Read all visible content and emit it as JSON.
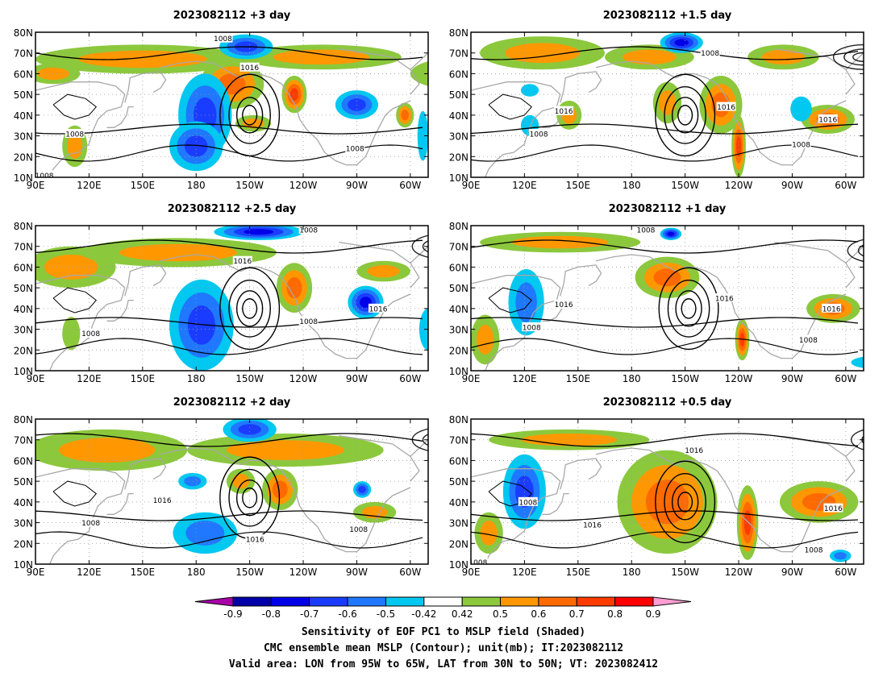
{
  "chart_data": [
    {
      "type": "heatmap",
      "title": "2023082112 +3 day",
      "xlim": [
        "90E",
        "50W"
      ],
      "ylim": [
        "10N",
        "80N"
      ],
      "x_ticks": [
        "90E",
        "120E",
        "150E",
        "180",
        "150W",
        "120W",
        "90W",
        "60W"
      ],
      "y_ticks": [
        "10N",
        "20N",
        "30N",
        "40N",
        "50N",
        "60N",
        "70N",
        "80N"
      ],
      "contour_labels": [
        {
          "value": "1008",
          "lon": 195,
          "lat": 77
        },
        {
          "value": "1016",
          "lon": 210,
          "lat": 63
        },
        {
          "value": "1008",
          "lon": 112,
          "lat": 31
        },
        {
          "value": "1008",
          "lon": 269,
          "lat": 24
        },
        {
          "value": "1008",
          "lon": 95,
          "lat": 11
        }
      ],
      "lows": [
        {
          "lon": 210,
          "lat": 40
        },
        {
          "lon": 330,
          "lat": 72
        }
      ],
      "positive_regions": [
        {
          "lon": 100,
          "lat": 60,
          "rx": 15,
          "ry": 5,
          "v": 0.58
        },
        {
          "lon": 150,
          "lat": 67,
          "rx": 60,
          "ry": 7,
          "v": 0.62
        },
        {
          "lon": 250,
          "lat": 68,
          "rx": 45,
          "ry": 6,
          "v": 0.6
        },
        {
          "lon": 330,
          "lat": 60,
          "rx": 30,
          "ry": 8,
          "v": 0.55
        },
        {
          "lon": 200,
          "lat": 55,
          "rx": 18,
          "ry": 12,
          "v": 0.66
        },
        {
          "lon": 235,
          "lat": 50,
          "rx": 7,
          "ry": 9,
          "v": 0.75
        },
        {
          "lon": 297,
          "lat": 40,
          "rx": 5,
          "ry": 6,
          "v": 0.72
        },
        {
          "lon": 112,
          "lat": 25,
          "rx": 7,
          "ry": 10,
          "v": 0.58
        },
        {
          "lon": 212,
          "lat": 36,
          "rx": 10,
          "ry": 4,
          "v": 0.55
        }
      ],
      "negative_regions": [
        {
          "lon": 185,
          "lat": 40,
          "rx": 15,
          "ry": 20,
          "v": -0.72
        },
        {
          "lon": 180,
          "lat": 25,
          "rx": 15,
          "ry": 12,
          "v": -0.72
        },
        {
          "lon": 208,
          "lat": 73,
          "rx": 15,
          "ry": 6,
          "v": -0.68
        },
        {
          "lon": 270,
          "lat": 45,
          "rx": 12,
          "ry": 7,
          "v": -0.68
        },
        {
          "lon": 307,
          "lat": 30,
          "rx": 3,
          "ry": 12,
          "v": -0.5
        }
      ]
    },
    {
      "type": "heatmap",
      "title": "2023082112 +1.5 day",
      "xlim": [
        "90E",
        "50W"
      ],
      "ylim": [
        "10N",
        "80N"
      ],
      "x_ticks": [
        "90E",
        "120E",
        "150E",
        "180",
        "150W",
        "120W",
        "90W",
        "60W"
      ],
      "y_ticks": [
        "10N",
        "20N",
        "30N",
        "40N",
        "50N",
        "60N",
        "70N",
        "80N"
      ],
      "contour_labels": [
        {
          "value": "1008",
          "lon": 224,
          "lat": 70
        },
        {
          "value": "1016",
          "lon": 142,
          "lat": 42
        },
        {
          "value": "1016",
          "lon": 233,
          "lat": 44
        },
        {
          "value": "1016",
          "lon": 290,
          "lat": 38
        },
        {
          "value": "1008",
          "lon": 128,
          "lat": 31
        },
        {
          "value": "1008",
          "lon": 275,
          "lat": 26
        }
      ],
      "lows": [
        {
          "lon": 210,
          "lat": 40
        },
        {
          "lon": 310,
          "lat": 68
        }
      ],
      "positive_regions": [
        {
          "lon": 130,
          "lat": 70,
          "rx": 35,
          "ry": 8,
          "v": 0.6
        },
        {
          "lon": 190,
          "lat": 68,
          "rx": 25,
          "ry": 6,
          "v": 0.55
        },
        {
          "lon": 265,
          "lat": 68,
          "rx": 20,
          "ry": 6,
          "v": 0.55
        },
        {
          "lon": 230,
          "lat": 45,
          "rx": 12,
          "ry": 14,
          "v": 0.68
        },
        {
          "lon": 240,
          "lat": 25,
          "rx": 4,
          "ry": 15,
          "v": 0.78
        },
        {
          "lon": 200,
          "lat": 46,
          "rx": 8,
          "ry": 10,
          "v": 0.62
        },
        {
          "lon": 290,
          "lat": 38,
          "rx": 15,
          "ry": 7,
          "v": 0.7
        },
        {
          "lon": 145,
          "lat": 40,
          "rx": 7,
          "ry": 7,
          "v": 0.58
        }
      ],
      "negative_regions": [
        {
          "lon": 208,
          "lat": 75,
          "rx": 12,
          "ry": 5,
          "v": -0.8
        },
        {
          "lon": 123,
          "lat": 35,
          "rx": 5,
          "ry": 5,
          "v": -0.5
        },
        {
          "lon": 275,
          "lat": 43,
          "rx": 6,
          "ry": 6,
          "v": -0.5
        },
        {
          "lon": 333,
          "lat": 23,
          "rx": 6,
          "ry": 7,
          "v": -0.55
        },
        {
          "lon": 123,
          "lat": 52,
          "rx": 5,
          "ry": 3,
          "v": -0.5
        }
      ]
    },
    {
      "type": "heatmap",
      "title": "2023082112 +2.5 day",
      "xlim": [
        "90E",
        "50W"
      ],
      "ylim": [
        "10N",
        "80N"
      ],
      "x_ticks": [
        "90E",
        "120E",
        "150E",
        "180",
        "150W",
        "120W",
        "90W",
        "60W"
      ],
      "y_ticks": [
        "10N",
        "20N",
        "30N",
        "40N",
        "50N",
        "60N",
        "70N",
        "80N"
      ],
      "contour_labels": [
        {
          "value": "1008",
          "lon": 243,
          "lat": 78
        },
        {
          "value": "1016",
          "lon": 206,
          "lat": 63
        },
        {
          "value": "1016",
          "lon": 282,
          "lat": 40
        },
        {
          "value": "1008",
          "lon": 243,
          "lat": 34
        },
        {
          "value": "1008",
          "lon": 121,
          "lat": 28
        }
      ],
      "lows": [
        {
          "lon": 210,
          "lat": 40
        },
        {
          "lon": 318,
          "lat": 70
        }
      ],
      "positive_regions": [
        {
          "lon": 110,
          "lat": 60,
          "rx": 25,
          "ry": 10,
          "v": 0.58
        },
        {
          "lon": 170,
          "lat": 67,
          "rx": 55,
          "ry": 7,
          "v": 0.6
        },
        {
          "lon": 235,
          "lat": 50,
          "rx": 10,
          "ry": 12,
          "v": 0.72
        },
        {
          "lon": 110,
          "lat": 28,
          "rx": 5,
          "ry": 8,
          "v": 0.5
        },
        {
          "lon": 285,
          "lat": 58,
          "rx": 15,
          "ry": 5,
          "v": 0.55
        }
      ],
      "negative_regions": [
        {
          "lon": 183,
          "lat": 32,
          "rx": 18,
          "ry": 22,
          "v": -0.72
        },
        {
          "lon": 215,
          "lat": 77,
          "rx": 25,
          "ry": 4,
          "v": -0.75
        },
        {
          "lon": 275,
          "lat": 43,
          "rx": 10,
          "ry": 8,
          "v": -0.75
        },
        {
          "lon": 310,
          "lat": 30,
          "rx": 5,
          "ry": 10,
          "v": -0.5
        },
        {
          "lon": 330,
          "lat": 42,
          "rx": 4,
          "ry": 8,
          "v": -0.5
        }
      ]
    },
    {
      "type": "heatmap",
      "title": "2023082112 +1 day",
      "xlim": [
        "90E",
        "50W"
      ],
      "ylim": [
        "10N",
        "80N"
      ],
      "x_ticks": [
        "90E",
        "120E",
        "150E",
        "180",
        "150W",
        "120W",
        "90W",
        "60W"
      ],
      "y_ticks": [
        "10N",
        "20N",
        "30N",
        "40N",
        "50N",
        "60N",
        "70N",
        "80N"
      ],
      "contour_labels": [
        {
          "value": "1008",
          "lon": 188,
          "lat": 78
        },
        {
          "value": "1016",
          "lon": 142,
          "lat": 42
        },
        {
          "value": "1016",
          "lon": 232,
          "lat": 45
        },
        {
          "value": "1016",
          "lon": 292,
          "lat": 40
        },
        {
          "value": "1008",
          "lon": 124,
          "lat": 31
        },
        {
          "value": "1008",
          "lon": 279,
          "lat": 25
        }
      ],
      "lows": [
        {
          "lon": 212,
          "lat": 40
        },
        {
          "lon": 318,
          "lat": 68
        }
      ],
      "positive_regions": [
        {
          "lon": 140,
          "lat": 72,
          "rx": 45,
          "ry": 5,
          "v": 0.58
        },
        {
          "lon": 200,
          "lat": 55,
          "rx": 18,
          "ry": 10,
          "v": 0.65
        },
        {
          "lon": 242,
          "lat": 25,
          "rx": 4,
          "ry": 10,
          "v": 0.75
        },
        {
          "lon": 293,
          "lat": 40,
          "rx": 15,
          "ry": 7,
          "v": 0.68
        },
        {
          "lon": 98,
          "lat": 25,
          "rx": 8,
          "ry": 12,
          "v": 0.55
        },
        {
          "lon": 343,
          "lat": 40,
          "rx": 4,
          "ry": 6,
          "v": 0.7
        }
      ],
      "negative_regions": [
        {
          "lon": 121,
          "lat": 43,
          "rx": 10,
          "ry": 16,
          "v": -0.6
        },
        {
          "lon": 202,
          "lat": 76,
          "rx": 6,
          "ry": 3,
          "v": -0.75
        },
        {
          "lon": 315,
          "lat": 14,
          "rx": 12,
          "ry": 3,
          "v": -0.5
        },
        {
          "lon": 330,
          "lat": 60,
          "rx": 3,
          "ry": 4,
          "v": -0.55
        }
      ]
    },
    {
      "type": "heatmap",
      "title": "2023082112 +2 day",
      "xlim": [
        "90E",
        "50W"
      ],
      "ylim": [
        "10N",
        "80N"
      ],
      "x_ticks": [
        "90E",
        "120E",
        "150E",
        "180",
        "150W",
        "120W",
        "90W",
        "60W"
      ],
      "y_ticks": [
        "10N",
        "20N",
        "30N",
        "40N",
        "50N",
        "60N",
        "70N",
        "80N"
      ],
      "contour_labels": [
        {
          "value": "1016",
          "lon": 161,
          "lat": 41
        },
        {
          "value": "1008",
          "lon": 121,
          "lat": 30
        },
        {
          "value": "1016",
          "lon": 213,
          "lat": 22
        },
        {
          "value": "1008",
          "lon": 271,
          "lat": 27
        }
      ],
      "lows": [
        {
          "lon": 210,
          "lat": 42
        },
        {
          "lon": 318,
          "lat": 70
        }
      ],
      "positive_regions": [
        {
          "lon": 130,
          "lat": 65,
          "rx": 45,
          "ry": 10,
          "v": 0.58
        },
        {
          "lon": 230,
          "lat": 65,
          "rx": 55,
          "ry": 8,
          "v": 0.6
        },
        {
          "lon": 227,
          "lat": 46,
          "rx": 10,
          "ry": 10,
          "v": 0.72
        },
        {
          "lon": 205,
          "lat": 50,
          "rx": 8,
          "ry": 6,
          "v": 0.62
        },
        {
          "lon": 280,
          "lat": 35,
          "rx": 12,
          "ry": 5,
          "v": 0.55
        }
      ],
      "negative_regions": [
        {
          "lon": 210,
          "lat": 75,
          "rx": 15,
          "ry": 6,
          "v": -0.72
        },
        {
          "lon": 185,
          "lat": 25,
          "rx": 18,
          "ry": 10,
          "v": -0.6
        },
        {
          "lon": 178,
          "lat": 50,
          "rx": 8,
          "ry": 4,
          "v": -0.6
        },
        {
          "lon": 273,
          "lat": 46,
          "rx": 5,
          "ry": 4,
          "v": -0.72
        }
      ]
    },
    {
      "type": "heatmap",
      "title": "2023082112 +0.5 day",
      "xlim": [
        "90E",
        "50W"
      ],
      "ylim": [
        "10N",
        "80N"
      ],
      "x_ticks": [
        "90E",
        "120E",
        "150E",
        "180",
        "150W",
        "120W",
        "90W",
        "60W"
      ],
      "y_ticks": [
        "10N",
        "20N",
        "30N",
        "40N",
        "50N",
        "60N",
        "70N",
        "80N"
      ],
      "contour_labels": [
        {
          "value": "1016",
          "lon": 215,
          "lat": 65
        },
        {
          "value": "1008",
          "lon": 122,
          "lat": 40
        },
        {
          "value": "1016",
          "lon": 158,
          "lat": 29
        },
        {
          "value": "1016",
          "lon": 293,
          "lat": 37
        },
        {
          "value": "1008",
          "lon": 282,
          "lat": 17
        },
        {
          "value": "1008",
          "lon": 94,
          "lat": 11
        }
      ],
      "lows": [
        {
          "lon": 210,
          "lat": 40
        },
        {
          "lon": 320,
          "lat": 70
        }
      ],
      "positive_regions": [
        {
          "lon": 200,
          "lat": 40,
          "rx": 28,
          "ry": 25,
          "v": 0.66
        },
        {
          "lon": 245,
          "lat": 30,
          "rx": 6,
          "ry": 18,
          "v": 0.76
        },
        {
          "lon": 285,
          "lat": 40,
          "rx": 22,
          "ry": 10,
          "v": 0.7
        },
        {
          "lon": 345,
          "lat": 40,
          "rx": 6,
          "ry": 10,
          "v": 0.68
        },
        {
          "lon": 145,
          "lat": 70,
          "rx": 45,
          "ry": 5,
          "v": 0.55
        },
        {
          "lon": 100,
          "lat": 25,
          "rx": 8,
          "ry": 10,
          "v": 0.55
        }
      ],
      "negative_regions": [
        {
          "lon": 120,
          "lat": 45,
          "rx": 12,
          "ry": 18,
          "v": -0.72
        },
        {
          "lon": 333,
          "lat": 55,
          "rx": 4,
          "ry": 5,
          "v": -0.8
        },
        {
          "lon": 297,
          "lat": 14,
          "rx": 6,
          "ry": 3,
          "v": -0.6
        },
        {
          "lon": 345,
          "lat": 22,
          "rx": 4,
          "ry": 4,
          "v": -0.5
        }
      ]
    }
  ],
  "colorbar": {
    "tick_labels": [
      "-0.9",
      "-0.8",
      "-0.7",
      "-0.6",
      "-0.5",
      "-0.42",
      "0.42",
      "0.5",
      "0.6",
      "0.7",
      "0.8",
      "0.9"
    ],
    "colors": [
      "#a800a8",
      "#0000a8",
      "#0000e8",
      "#1a3cff",
      "#1f78ff",
      "#00c8f0",
      "#ffffff",
      "#8cc83c",
      "#ff9800",
      "#ff6a00",
      "#ff3c00",
      "#ff0000",
      "#ff9ed2"
    ]
  },
  "captions": [
    "Sensitivity of EOF PC1 to MSLP field (Shaded)",
    "CMC ensemble mean MSLP (Contour); unit(mb); IT:2023082112",
    "Valid area: LON from 95W to 65W, LAT from 30N to 50N; VT: 2023082412"
  ]
}
